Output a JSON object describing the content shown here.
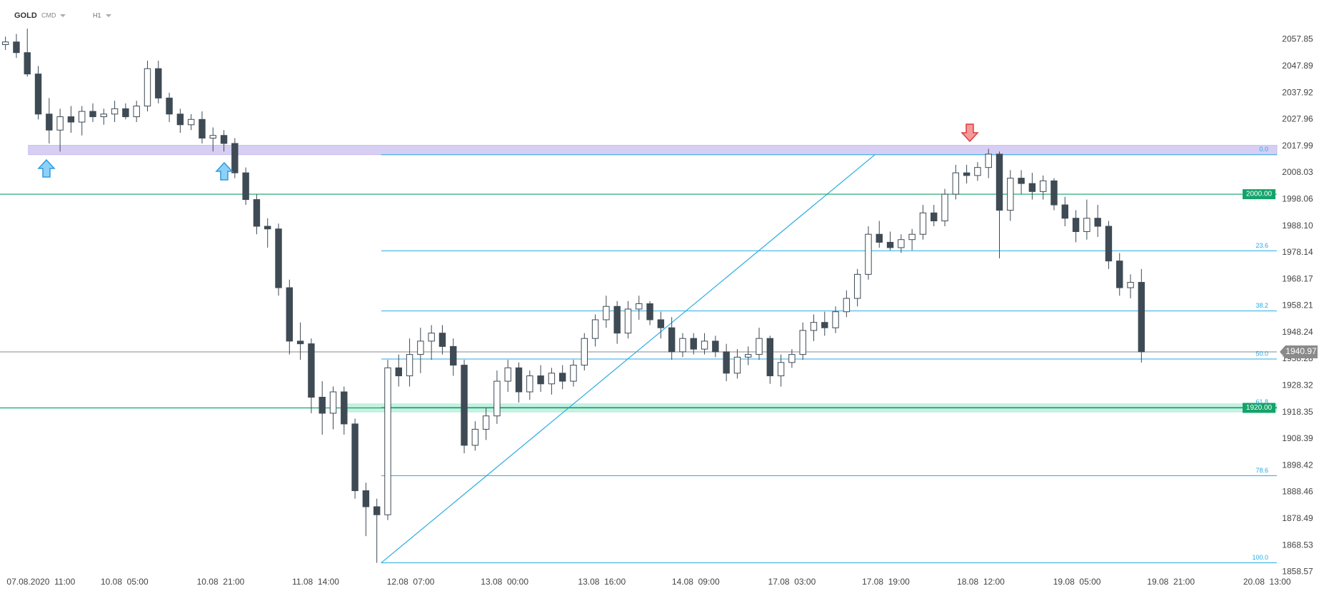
{
  "chart_data": {
    "type": "candlestick",
    "title": "GOLD",
    "subtitle": "CMD",
    "timeframe": "H1",
    "up_color": "#ffffff",
    "down_color": "#3e4a54",
    "ohlc": [
      [
        2056,
        2059,
        2054,
        2057
      ],
      [
        2057,
        2060,
        2051,
        2053
      ],
      [
        2053,
        2062,
        2044,
        2045
      ],
      [
        2045,
        2048,
        2028,
        2030
      ],
      [
        2030,
        2036,
        2019,
        2024
      ],
      [
        2024,
        2032,
        2016,
        2029
      ],
      [
        2029,
        2033,
        2023,
        2027
      ],
      [
        2027,
        2033,
        2022,
        2031
      ],
      [
        2031,
        2034,
        2027,
        2029
      ],
      [
        2029,
        2032,
        2026,
        2030
      ],
      [
        2030,
        2035,
        2027,
        2032
      ],
      [
        2032,
        2034,
        2028,
        2029
      ],
      [
        2029,
        2035,
        2027,
        2033
      ],
      [
        2033,
        2050,
        2031,
        2047
      ],
      [
        2047,
        2050,
        2034,
        2036
      ],
      [
        2036,
        2038,
        2027,
        2030
      ],
      [
        2030,
        2032,
        2023,
        2026
      ],
      [
        2026,
        2030,
        2024,
        2028
      ],
      [
        2028,
        2031,
        2019,
        2021
      ],
      [
        2021,
        2025,
        2016,
        2022
      ],
      [
        2022,
        2024,
        2016,
        2019
      ],
      [
        2019,
        2021,
        2006,
        2008
      ],
      [
        2008,
        2010,
        1996,
        1998
      ],
      [
        1998,
        2000,
        1985,
        1988
      ],
      [
        1988,
        1991,
        1980,
        1987
      ],
      [
        1987,
        1989,
        1962,
        1965
      ],
      [
        1965,
        1968,
        1940,
        1945
      ],
      [
        1945,
        1952,
        1938,
        1944
      ],
      [
        1944,
        1946,
        1918,
        1924
      ],
      [
        1924,
        1930,
        1910,
        1918
      ],
      [
        1918,
        1928,
        1912,
        1926
      ],
      [
        1926,
        1928,
        1910,
        1914
      ],
      [
        1914,
        1916,
        1886,
        1889
      ],
      [
        1889,
        1892,
        1872,
        1883
      ],
      [
        1883,
        1886,
        1862,
        1880
      ],
      [
        1880,
        1938,
        1878,
        1935
      ],
      [
        1935,
        1940,
        1928,
        1932
      ],
      [
        1932,
        1946,
        1928,
        1940
      ],
      [
        1940,
        1950,
        1933,
        1945
      ],
      [
        1945,
        1951,
        1938,
        1948
      ],
      [
        1948,
        1951,
        1940,
        1943
      ],
      [
        1943,
        1946,
        1932,
        1936
      ],
      [
        1936,
        1938,
        1903,
        1906
      ],
      [
        1906,
        1915,
        1904,
        1912
      ],
      [
        1912,
        1920,
        1908,
        1917
      ],
      [
        1917,
        1934,
        1914,
        1930
      ],
      [
        1930,
        1938,
        1926,
        1935
      ],
      [
        1935,
        1937,
        1922,
        1926
      ],
      [
        1926,
        1934,
        1923,
        1932
      ],
      [
        1932,
        1936,
        1926,
        1929
      ],
      [
        1929,
        1935,
        1925,
        1933
      ],
      [
        1933,
        1936,
        1927,
        1930
      ],
      [
        1930,
        1938,
        1928,
        1936
      ],
      [
        1936,
        1948,
        1934,
        1946
      ],
      [
        1946,
        1955,
        1943,
        1953
      ],
      [
        1953,
        1962,
        1950,
        1958
      ],
      [
        1958,
        1960,
        1944,
        1948
      ],
      [
        1948,
        1960,
        1946,
        1957
      ],
      [
        1957,
        1962,
        1953,
        1959
      ],
      [
        1959,
        1960,
        1951,
        1953
      ],
      [
        1953,
        1956,
        1946,
        1950
      ],
      [
        1950,
        1954,
        1938,
        1941
      ],
      [
        1941,
        1948,
        1939,
        1946
      ],
      [
        1946,
        1948,
        1940,
        1942
      ],
      [
        1942,
        1948,
        1940,
        1945
      ],
      [
        1945,
        1947,
        1939,
        1941
      ],
      [
        1941,
        1944,
        1930,
        1933
      ],
      [
        1933,
        1942,
        1931,
        1939
      ],
      [
        1939,
        1943,
        1936,
        1940
      ],
      [
        1940,
        1950,
        1938,
        1946
      ],
      [
        1946,
        1947,
        1929,
        1932
      ],
      [
        1932,
        1940,
        1928,
        1937
      ],
      [
        1937,
        1942,
        1935,
        1940
      ],
      [
        1940,
        1952,
        1938,
        1949
      ],
      [
        1949,
        1955,
        1945,
        1952
      ],
      [
        1952,
        1956,
        1947,
        1950
      ],
      [
        1950,
        1958,
        1948,
        1956
      ],
      [
        1956,
        1964,
        1954,
        1961
      ],
      [
        1961,
        1972,
        1958,
        1970
      ],
      [
        1970,
        1988,
        1968,
        1985
      ],
      [
        1985,
        1990,
        1980,
        1982
      ],
      [
        1982,
        1986,
        1979,
        1980
      ],
      [
        1980,
        1985,
        1978,
        1983
      ],
      [
        1983,
        1987,
        1979,
        1985
      ],
      [
        1985,
        1996,
        1983,
        1993
      ],
      [
        1993,
        1996,
        1988,
        1990
      ],
      [
        1990,
        2002,
        1988,
        2000
      ],
      [
        2000,
        2011,
        1998,
        2008
      ],
      [
        2008,
        2011,
        2004,
        2007
      ],
      [
        2007,
        2012,
        2005,
        2010
      ],
      [
        2010,
        2017,
        2006,
        2015
      ],
      [
        2015,
        2016,
        1976,
        1994
      ],
      [
        1994,
        2009,
        1990,
        2006
      ],
      [
        2006,
        2009,
        2000,
        2004
      ],
      [
        2004,
        2008,
        1998,
        2001
      ],
      [
        2001,
        2007,
        1998,
        2005
      ],
      [
        2005,
        2006,
        1994,
        1996
      ],
      [
        1996,
        1999,
        1988,
        1991
      ],
      [
        1991,
        1994,
        1982,
        1986
      ],
      [
        1986,
        1998,
        1983,
        1991
      ],
      [
        1991,
        1996,
        1984,
        1988
      ],
      [
        1988,
        1990,
        1972,
        1975
      ],
      [
        1975,
        1978,
        1962,
        1965
      ],
      [
        1965,
        1970,
        1961,
        1967
      ],
      [
        1967,
        1972,
        1937,
        1941
      ]
    ],
    "xlim": [
      -0.5,
      116.4
    ],
    "xticks": [
      {
        "value": 3.25,
        "label": "07.08.2020  11:00"
      },
      {
        "value": 10.9,
        "label": "10.08  05:00"
      },
      {
        "value": 19.7,
        "label": "10.08  21:00"
      },
      {
        "value": 28.4,
        "label": "11.08  14:00"
      },
      {
        "value": 37.1,
        "label": "12.08  07:00"
      },
      {
        "value": 45.7,
        "label": "13.08  00:00"
      },
      {
        "value": 54.6,
        "label": "13.08  16:00"
      },
      {
        "value": 63.2,
        "label": "14.08  09:00"
      },
      {
        "value": 72.0,
        "label": "17.08  03:00"
      },
      {
        "value": 80.6,
        "label": "17.08  19:00"
      },
      {
        "value": 89.3,
        "label": "18.08  12:00"
      },
      {
        "value": 98.1,
        "label": "19.08  05:00"
      },
      {
        "value": 106.7,
        "label": "19.08  21:00"
      },
      {
        "value": 115.5,
        "label": "20.08  13:00"
      }
    ],
    "ylim": [
      1857.6,
      2072.7
    ],
    "yticks": [
      2057.85,
      2047.89,
      2037.92,
      2027.96,
      2017.99,
      2008.03,
      1998.06,
      {
        "value": 1988.1,
        "label": "1988.10"
      },
      1978.14,
      1968.17,
      1958.21,
      1948.24,
      1938.28,
      1928.32,
      1918.35,
      1908.39,
      1898.42,
      1888.46,
      1878.49,
      1868.53,
      1858.57
    ],
    "levels": [
      {
        "value": 2000,
        "label": "2000.00"
      },
      {
        "value": 1920,
        "label": "1920.00"
      }
    ],
    "level_color": "#13a36b",
    "current_price": 1940.97,
    "fib": {
      "color": "#29abe2",
      "start": 34.4,
      "levels": [
        {
          "value": 2014.8,
          "label": "0.0"
        },
        {
          "value": 1978.8,
          "label": "23.6"
        },
        {
          "value": 1956.3,
          "label": "38.2"
        },
        {
          "value": 1938.3,
          "label": "50.0"
        },
        {
          "value": 1920.2,
          "label": "61.8"
        },
        {
          "value": 1894.6,
          "label": "78.6"
        },
        {
          "value": 1862.0,
          "label": "100.0"
        }
      ]
    },
    "trendline": {
      "x": [
        34.4,
        79.6
      ],
      "y": [
        1862.0,
        2014.8
      ]
    },
    "zones": [
      {
        "low": 2014.8,
        "high": 2018.3,
        "start": 2.1,
        "color": "#c9bdf0"
      },
      {
        "low": 1918.5,
        "high": 1921.5,
        "start": 31.3,
        "color": "#b4ecd6"
      }
    ]
  }
}
